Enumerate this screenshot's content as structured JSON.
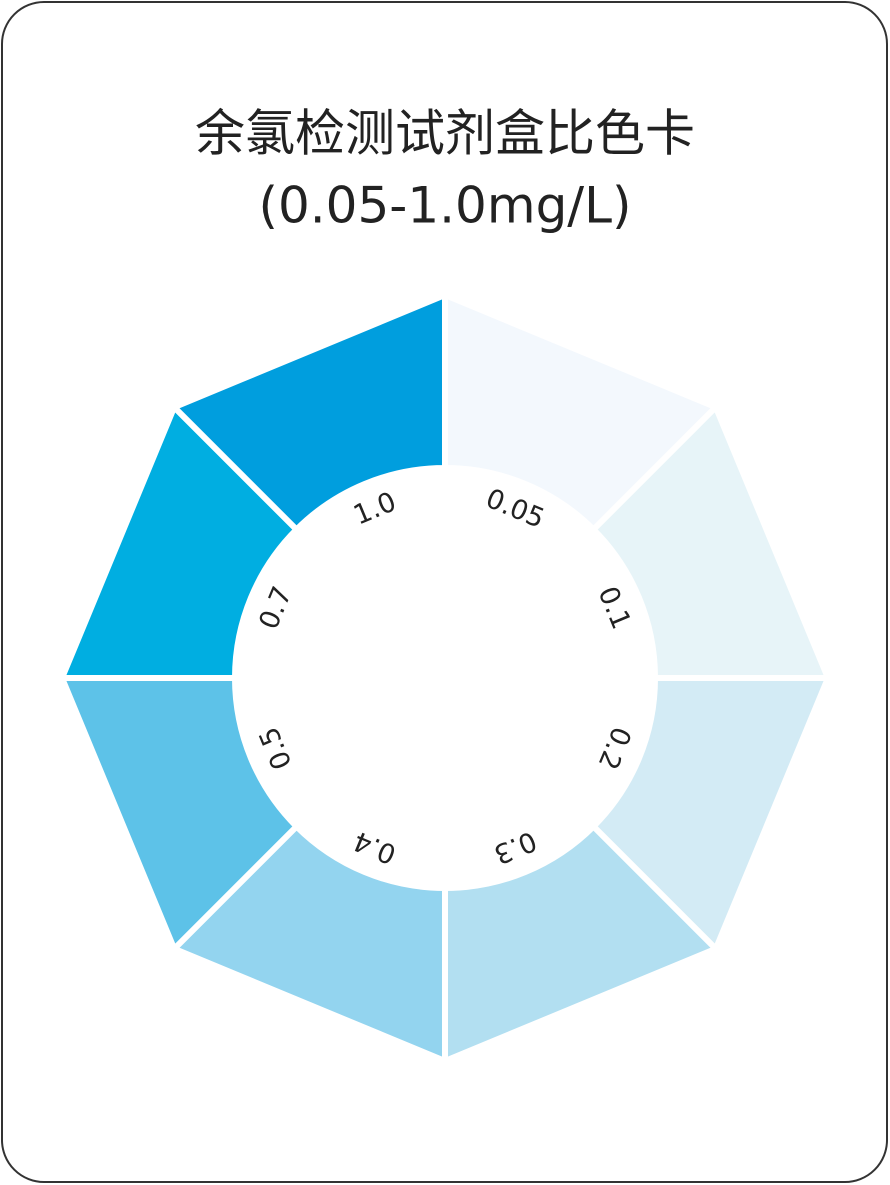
{
  "title": "余氯检测试剂盒比色卡",
  "subtitle": "(0.05-1.0mg/L)",
  "segments": [
    {
      "label": "0.05",
      "color": "#f3f8fd"
    },
    {
      "label": "0.1",
      "color": "#e7f4f8"
    },
    {
      "label": "0.2",
      "color": "#d3ebf5"
    },
    {
      "label": "0.3",
      "color": "#b2dff1"
    },
    {
      "label": "0.4",
      "color": "#93d4ef"
    },
    {
      "label": "0.5",
      "color": "#5dc2e8"
    },
    {
      "label": "0.7",
      "color": "#00aee1"
    },
    {
      "label": "1.0",
      "color": "#009ede"
    }
  ]
}
